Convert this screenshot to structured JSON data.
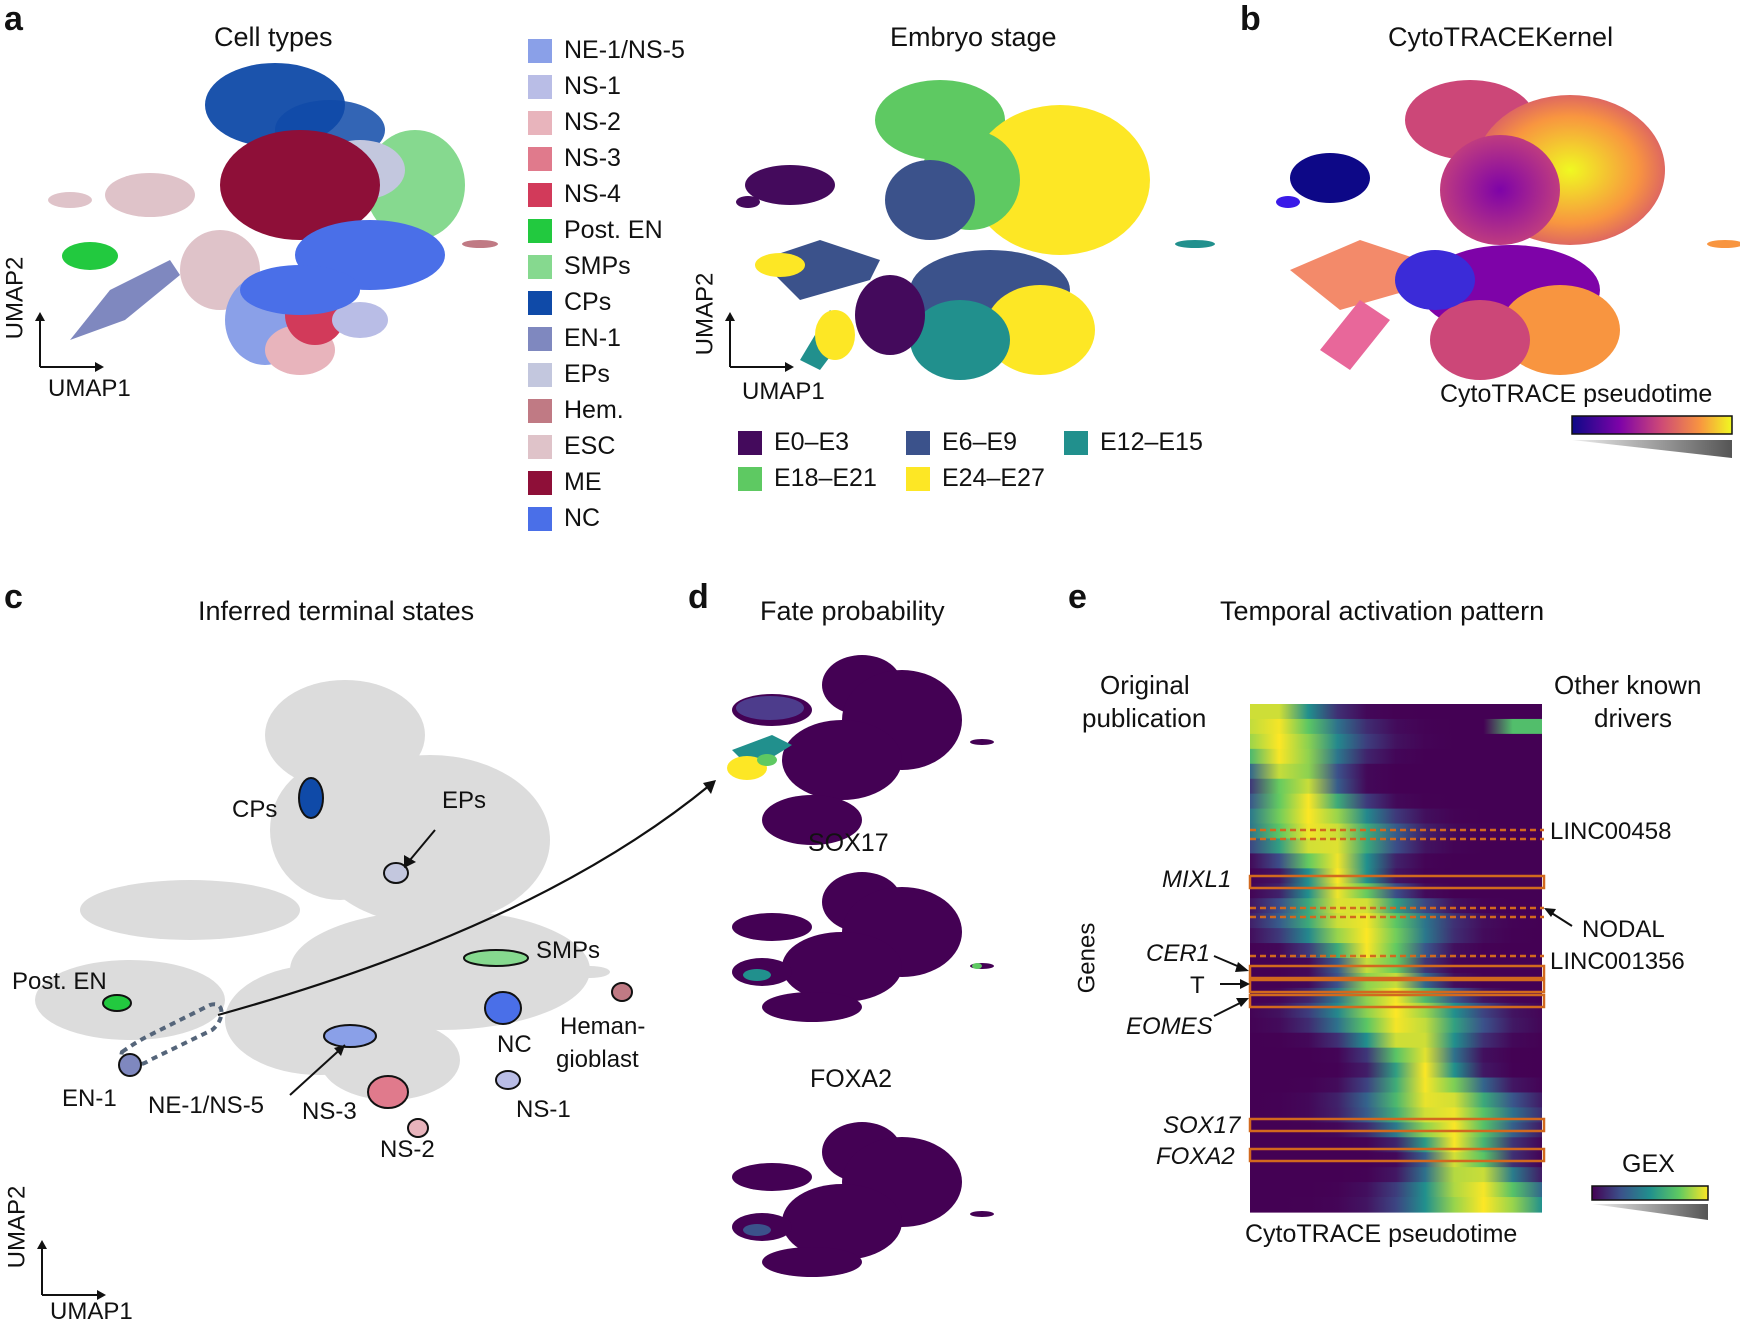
{
  "panels": {
    "a": {
      "letter": "a",
      "cell_types_title": "Cell types",
      "embryo_title": "Embryo stage",
      "axis_x": "UMAP1",
      "axis_y": "UMAP2",
      "cell_type_legend": [
        {
          "label": "NE-1/NS-5",
          "color": "#8aa0e8"
        },
        {
          "label": "NS-1",
          "color": "#b9bde6"
        },
        {
          "label": "NS-2",
          "color": "#e8b4bc"
        },
        {
          "label": "NS-3",
          "color": "#e07a8c"
        },
        {
          "label": "NS-4",
          "color": "#d23a5a"
        },
        {
          "label": "Post. EN",
          "color": "#22c93f"
        },
        {
          "label": "SMPs",
          "color": "#86d98f"
        },
        {
          "label": "CPs",
          "color": "#0f4aa8"
        },
        {
          "label": "EN-1",
          "color": "#7f88bf"
        },
        {
          "label": "EPs",
          "color": "#c3c7de"
        },
        {
          "label": "Hem.",
          "color": "#c07a84"
        },
        {
          "label": "ESC",
          "color": "#dfc3c9"
        },
        {
          "label": "ME",
          "color": "#8e0f38"
        },
        {
          "label": "NC",
          "color": "#4a6fe8"
        }
      ],
      "stage_legend": [
        {
          "label": "E0–E3",
          "color": "#440a5c"
        },
        {
          "label": "E6–E9",
          "color": "#3b528b"
        },
        {
          "label": "E12–E15",
          "color": "#21908d"
        },
        {
          "label": "E18–E21",
          "color": "#5ec962"
        },
        {
          "label": "E24–E27",
          "color": "#fde725"
        }
      ]
    },
    "b": {
      "letter": "b",
      "title": "CytoTRACEKernel",
      "colorbar_label": "CytoTRACE pseudotime"
    },
    "c": {
      "letter": "c",
      "title": "Inferred terminal states",
      "labels": {
        "cps": "CPs",
        "eps": "EPs",
        "smps": "SMPs",
        "post_en": "Post. EN",
        "nc": "NC",
        "heman1": "Heman-",
        "heman2": "gioblast",
        "en1": "EN-1",
        "ne1": "NE-1/NS-5",
        "ns3": "NS-3",
        "ns2": "NS-2",
        "ns1": "NS-1"
      },
      "axis_x": "UMAP1",
      "axis_y": "UMAP2"
    },
    "d": {
      "letter": "d",
      "title": "Fate probability",
      "gene1": "SOX17",
      "gene2": "FOXA2"
    },
    "e": {
      "letter": "e",
      "title": "Temporal activation pattern",
      "left_header_1": "Original",
      "left_header_2": "publication",
      "right_header_1": "Other known",
      "right_header_2": "drivers",
      "y_label": "Genes",
      "x_label": "CytoTRACE pseudotime",
      "colorbar_label": "GEX",
      "left_genes": [
        "MIXL1",
        "CER1",
        "T",
        "EOMES",
        "SOX17",
        "FOXA2"
      ],
      "right_genes": [
        "LINC00458",
        "NODAL",
        "LINC001356"
      ]
    }
  },
  "colors": {
    "umap_gray": "#dcdcdc",
    "highlight_orange": "#d2691e",
    "viridis": [
      "#440154",
      "#3b528b",
      "#21908d",
      "#5ec962",
      "#fde725"
    ],
    "plasma": [
      "#0d0887",
      "#7e03a8",
      "#cc4778",
      "#f89540",
      "#f0f921"
    ]
  }
}
